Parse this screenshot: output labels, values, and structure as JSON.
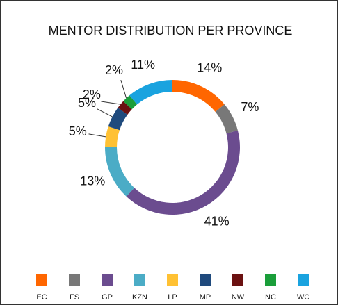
{
  "chart_data": {
    "type": "donut",
    "title": "MENTOR DISTRIBUTION PER PROVINCE",
    "categories": [
      "EC",
      "FS",
      "GP",
      "KZN",
      "LP",
      "MP",
      "NW",
      "NC",
      "WC"
    ],
    "values": [
      14,
      7,
      41,
      13,
      5,
      5,
      2,
      2,
      11
    ],
    "value_labels": [
      "14%",
      "7%",
      "41%",
      "13%",
      "5%",
      "5%",
      "2%",
      "2%",
      "11%"
    ],
    "colors": [
      "#ff6600",
      "#787878",
      "#6b4c8f",
      "#4bacc6",
      "#ffc133",
      "#1f4a7d",
      "#6b1111",
      "#1a9e3a",
      "#1aa3df"
    ],
    "legend": "bottom"
  }
}
